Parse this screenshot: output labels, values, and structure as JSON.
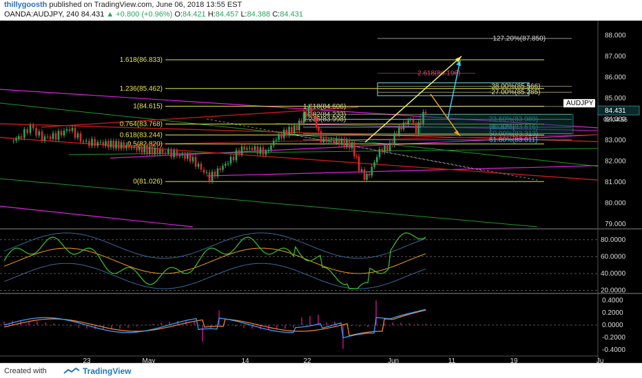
{
  "header": {
    "author": "thillygoosth",
    "published_text": "published on TradingView.com, June 06, 2018 13:55 EST",
    "symbol": "OANDA:AUDJPY, 240",
    "last": "84.431",
    "change": "+0.800 (+0.96%)",
    "o_label": "O:",
    "o": "84.421",
    "h_label": "H:",
    "h": "84.457",
    "l_label": "L:",
    "l": "84.388",
    "c_label": "C:",
    "c": "84.431"
  },
  "footer": {
    "created_with": "Created with",
    "brand": "TradingView"
  },
  "chart_data": {
    "type": "line",
    "title": "",
    "price_axis": {
      "ticks": [
        "88.000",
        "87.000",
        "86.000",
        "85.000",
        "84.000",
        "83.000",
        "82.000",
        "81.000",
        "80.000",
        "79.000"
      ],
      "tick_values": [
        88,
        87,
        86,
        85,
        84,
        83,
        82,
        81,
        80,
        79
      ],
      "ylim": [
        78.8,
        88.7
      ],
      "symbol_tag": "AUDJPY",
      "last_price_tag": "84.431",
      "countdown_tag": "02:04:56"
    },
    "x_axis": {
      "ticks": [
        "23",
        "May",
        "14",
        "22",
        "Jun",
        "11",
        "19",
        "Ju"
      ],
      "tick_index": [
        120,
        210,
        350,
        440,
        565,
        650,
        740,
        865
      ]
    },
    "price_series_sample": [
      [
        10,
        82.95
      ],
      [
        25,
        83.2
      ],
      [
        38,
        83.65
      ],
      [
        55,
        83.1
      ],
      [
        75,
        83.2
      ],
      [
        95,
        83.55
      ],
      [
        115,
        82.9
      ],
      [
        140,
        82.85
      ],
      [
        170,
        82.75
      ],
      [
        200,
        82.55
      ],
      [
        230,
        82.45
      ],
      [
        255,
        82.3
      ],
      [
        270,
        82.15
      ],
      [
        290,
        81.5
      ],
      [
        298,
        81.2
      ],
      [
        310,
        81.55
      ],
      [
        325,
        81.95
      ],
      [
        345,
        82.6
      ],
      [
        360,
        82.6
      ],
      [
        380,
        82.4
      ],
      [
        395,
        83.1
      ],
      [
        410,
        83.4
      ],
      [
        425,
        83.6
      ],
      [
        435,
        84.15
      ],
      [
        442,
        84.45
      ],
      [
        450,
        84.0
      ],
      [
        460,
        83.0
      ],
      [
        475,
        83.0
      ],
      [
        490,
        82.9
      ],
      [
        505,
        82.75
      ],
      [
        515,
        81.7
      ],
      [
        523,
        81.2
      ],
      [
        530,
        81.4
      ],
      [
        545,
        82.5
      ],
      [
        560,
        82.7
      ],
      [
        570,
        83.4
      ],
      [
        580,
        83.75
      ],
      [
        590,
        84.0
      ],
      [
        598,
        83.45
      ],
      [
        605,
        83.95
      ],
      [
        612,
        84.43
      ]
    ],
    "fib_levels_left": [
      {
        "label": "1.618(86.833)",
        "value": 86.833
      },
      {
        "label": "1.236(85.462)",
        "value": 85.462
      },
      {
        "label": "1(84.615)",
        "value": 84.615
      },
      {
        "label": "0.764(83.768)",
        "value": 83.768
      },
      {
        "label": "0.618(83.244)",
        "value": 83.244
      },
      {
        "label": "0.5(82.820)",
        "value": 82.82
      },
      {
        "label": "0(81.026)",
        "value": 81.026
      }
    ],
    "fib_levels_right": [
      {
        "label": "-127.20%(87.850)",
        "value": 87.85
      },
      {
        "label": "2.618(86.196)",
        "value": 86.196
      },
      {
        "label": "-38.00%(85.566)",
        "value": 85.566
      },
      {
        "label": "-27.00%(85.285)",
        "value": 85.285
      },
      {
        "label": "1.618(84.606)",
        "value": 84.606
      },
      {
        "label": "1.382(84.233)",
        "value": 84.233
      },
      {
        "label": "1.236(83.998)",
        "value": 83.998
      },
      {
        "label": "23.60%(83.989)",
        "value": 83.989
      },
      {
        "label": "(83.623)",
        "value": 83.623
      },
      {
        "label": "38.20%(83.616)",
        "value": 83.616
      },
      {
        "label": "50.00%(83.313)",
        "value": 83.313
      },
      {
        "label": "61.80%(83.011)",
        "value": 83.011
      }
    ],
    "indicator1": {
      "ticks": [
        "80.0000",
        "60.0000",
        "40.0000",
        "20.0000"
      ],
      "tick_values": [
        80,
        60,
        40,
        20
      ],
      "ylim": [
        18,
        92
      ]
    },
    "indicator2": {
      "ticks": [
        "0.4000",
        "0.2000",
        "0.0000",
        "-0.2000",
        "-0.4000"
      ],
      "tick_values": [
        0.4,
        0.2,
        0,
        -0.2,
        -0.4
      ],
      "ylim": [
        -0.5,
        0.5
      ]
    },
    "colors": {
      "up": "#26a65b",
      "down": "#e0262d",
      "fib": "#e8e84a",
      "magenta": "#e020e0",
      "green_line": "#1f9a2a",
      "red_line": "#c41a1a",
      "cyan": "#40d0f0",
      "orange": "#f0a020",
      "yellow": "#f0f060",
      "rsi": "#3aba2a",
      "macd_blue": "#3aa0ff",
      "macd_orange": "#ff8a30",
      "hist": "#c0108a"
    }
  }
}
